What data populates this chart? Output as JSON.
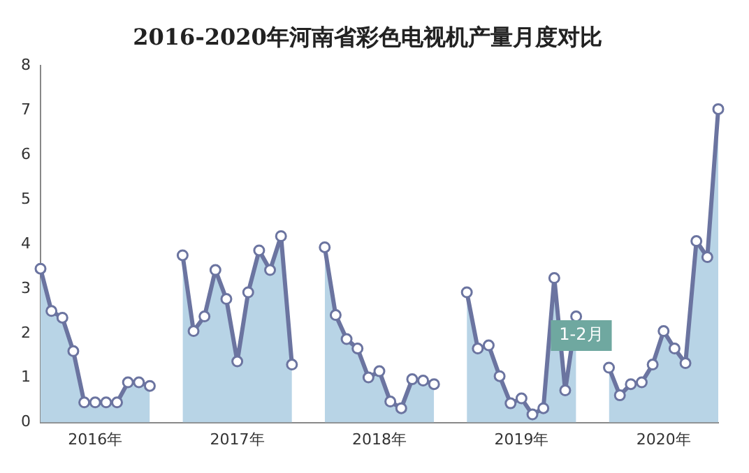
{
  "chart_data": {
    "type": "area",
    "title": "2016-2020年河南省彩色电视机产量月度对比",
    "categories": [
      null,
      null,
      null,
      null,
      null,
      "2016年",
      null,
      null,
      null,
      null,
      null,
      null,
      null,
      null,
      null,
      null,
      null,
      null,
      "2017年",
      null,
      null,
      null,
      null,
      null,
      null,
      null,
      null,
      null,
      null,
      null,
      null,
      "2018年",
      null,
      null,
      null,
      null,
      null,
      null,
      null,
      null,
      null,
      null,
      null,
      null,
      "2019年",
      null,
      null,
      null,
      null,
      null,
      null,
      null,
      null,
      null,
      null,
      null,
      null,
      "2020年",
      null,
      null,
      null,
      null,
      null
    ],
    "series": [
      {
        "color": "#6b74a0",
        "values": [
          3.45,
          2.5,
          2.35,
          1.6,
          0.45,
          0.45,
          0.45,
          0.45,
          0.9,
          0.9,
          0.82,
          null,
          null,
          3.75,
          2.05,
          2.38,
          3.42,
          2.77,
          1.37,
          2.92,
          3.86,
          3.42,
          4.18,
          1.3,
          null,
          null,
          3.93,
          2.41,
          1.87,
          1.66,
          1.01,
          1.15,
          0.47,
          0.32,
          0.97,
          0.94,
          0.86,
          null,
          null,
          2.92,
          1.66,
          1.73,
          1.04,
          0.43,
          0.54,
          0.18,
          0.32,
          3.24,
          0.72,
          2.38,
          null,
          null,
          1.23,
          0.61,
          0.86,
          0.9,
          1.3,
          2.05,
          1.66,
          1.33,
          4.07,
          3.71,
          7.03
        ]
      }
    ],
    "ylim": [
      0,
      8
    ],
    "yticks": [
      0,
      1,
      2,
      3,
      4,
      5,
      6,
      7,
      8
    ],
    "grid": false,
    "legend": false,
    "marker": "circle",
    "annotations": [
      {
        "text": "1-2月",
        "y": 1.23
      }
    ]
  }
}
